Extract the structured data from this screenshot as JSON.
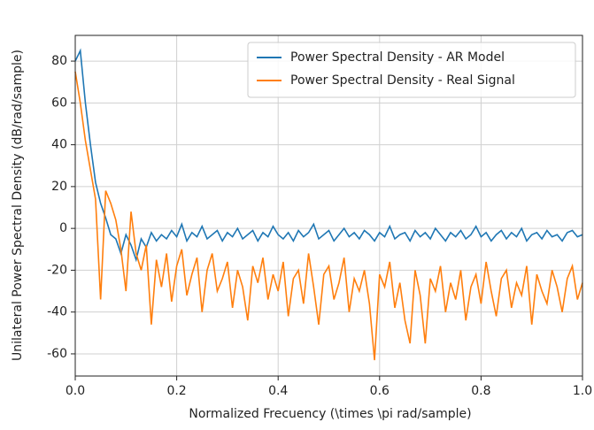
{
  "chart_data": {
    "type": "line",
    "xlabel": "Normalized Frecuency (\\times \\pi rad/sample)",
    "ylabel": "Unilateral Power Spectral Density (dB/rad/sample)",
    "x": [
      0,
      0.01,
      0.02,
      0.03,
      0.04,
      0.05,
      0.06,
      0.07,
      0.08,
      0.09,
      0.1,
      0.11,
      0.12,
      0.13,
      0.14,
      0.15,
      0.16,
      0.17,
      0.18,
      0.19,
      0.2,
      0.21,
      0.22,
      0.23,
      0.24,
      0.25,
      0.26,
      0.27,
      0.28,
      0.29,
      0.3,
      0.31,
      0.32,
      0.33,
      0.34,
      0.35,
      0.36,
      0.37,
      0.38,
      0.39,
      0.4,
      0.41,
      0.42,
      0.43,
      0.44,
      0.45,
      0.46,
      0.47,
      0.48,
      0.49,
      0.5,
      0.51,
      0.52,
      0.53,
      0.54,
      0.55,
      0.56,
      0.57,
      0.58,
      0.59,
      0.6,
      0.61,
      0.62,
      0.63,
      0.64,
      0.65,
      0.66,
      0.67,
      0.68,
      0.69,
      0.7,
      0.71,
      0.72,
      0.73,
      0.74,
      0.75,
      0.76,
      0.77,
      0.78,
      0.79,
      0.8,
      0.81,
      0.82,
      0.83,
      0.84,
      0.85,
      0.86,
      0.87,
      0.88,
      0.89,
      0.9,
      0.91,
      0.92,
      0.93,
      0.94,
      0.95,
      0.96,
      0.97,
      0.98,
      0.99,
      1
    ],
    "series": [
      {
        "name": "Power Spectral Density - AR Model",
        "color": "#1f77b4",
        "values": [
          80,
          85,
          60,
          40,
          22,
          12,
          5,
          -3,
          -5,
          -12,
          -3,
          -8,
          -15,
          -5,
          -9,
          -2,
          -6,
          -3,
          -5,
          -1,
          -4,
          2,
          -6,
          -2,
          -4,
          1,
          -5,
          -3,
          -1,
          -6,
          -2,
          -4,
          0,
          -5,
          -3,
          -1,
          -6,
          -2,
          -4,
          1,
          -3,
          -5,
          -2,
          -6,
          -1,
          -4,
          -2,
          2,
          -5,
          -3,
          -1,
          -6,
          -3,
          0,
          -4,
          -2,
          -5,
          -1,
          -3,
          -6,
          -2,
          -4,
          1,
          -5,
          -3,
          -2,
          -6,
          -1,
          -4,
          -2,
          -5,
          0,
          -3,
          -6,
          -2,
          -4,
          -1,
          -5,
          -3,
          1,
          -4,
          -2,
          -6,
          -3,
          -1,
          -5,
          -2,
          -4,
          0,
          -6,
          -3,
          -2,
          -5,
          -1,
          -4,
          -3,
          -6,
          -2,
          -1,
          -4,
          -3
        ]
      },
      {
        "name": "Power Spectral Density - Real Signal",
        "color": "#ff7f0e",
        "values": [
          75,
          60,
          42,
          28,
          14,
          -34,
          18,
          12,
          4,
          -10,
          -30,
          8,
          -12,
          -20,
          -8,
          -46,
          -15,
          -28,
          -12,
          -35,
          -18,
          -10,
          -32,
          -22,
          -14,
          -40,
          -20,
          -12,
          -30,
          -24,
          -16,
          -38,
          -20,
          -28,
          -44,
          -18,
          -26,
          -14,
          -34,
          -22,
          -30,
          -16,
          -42,
          -24,
          -20,
          -36,
          -12,
          -28,
          -46,
          -22,
          -18,
          -34,
          -26,
          -14,
          -40,
          -24,
          -30,
          -20,
          -36,
          -63,
          -22,
          -28,
          -16,
          -38,
          -26,
          -44,
          -55,
          -20,
          -32,
          -55,
          -24,
          -30,
          -18,
          -40,
          -26,
          -34,
          -20,
          -44,
          -28,
          -22,
          -36,
          -16,
          -30,
          -42,
          -24,
          -20,
          -38,
          -26,
          -32,
          -18,
          -46,
          -22,
          -30,
          -36,
          -20,
          -28,
          -40,
          -24,
          -18,
          -34,
          -26
        ]
      }
    ],
    "xlim": [
      0,
      1
    ],
    "xticks": [
      {
        "value": 0,
        "label": "0.0"
      },
      0.2,
      0.4,
      0.6,
      0.8,
      {
        "value": 1,
        "label": "1.0"
      }
    ],
    "ylim": [
      -70.6,
      92.3
    ],
    "yticks": [
      -60,
      -40,
      -20,
      0,
      20,
      40,
      60,
      80
    ],
    "grid": true,
    "legend": "upper right"
  }
}
